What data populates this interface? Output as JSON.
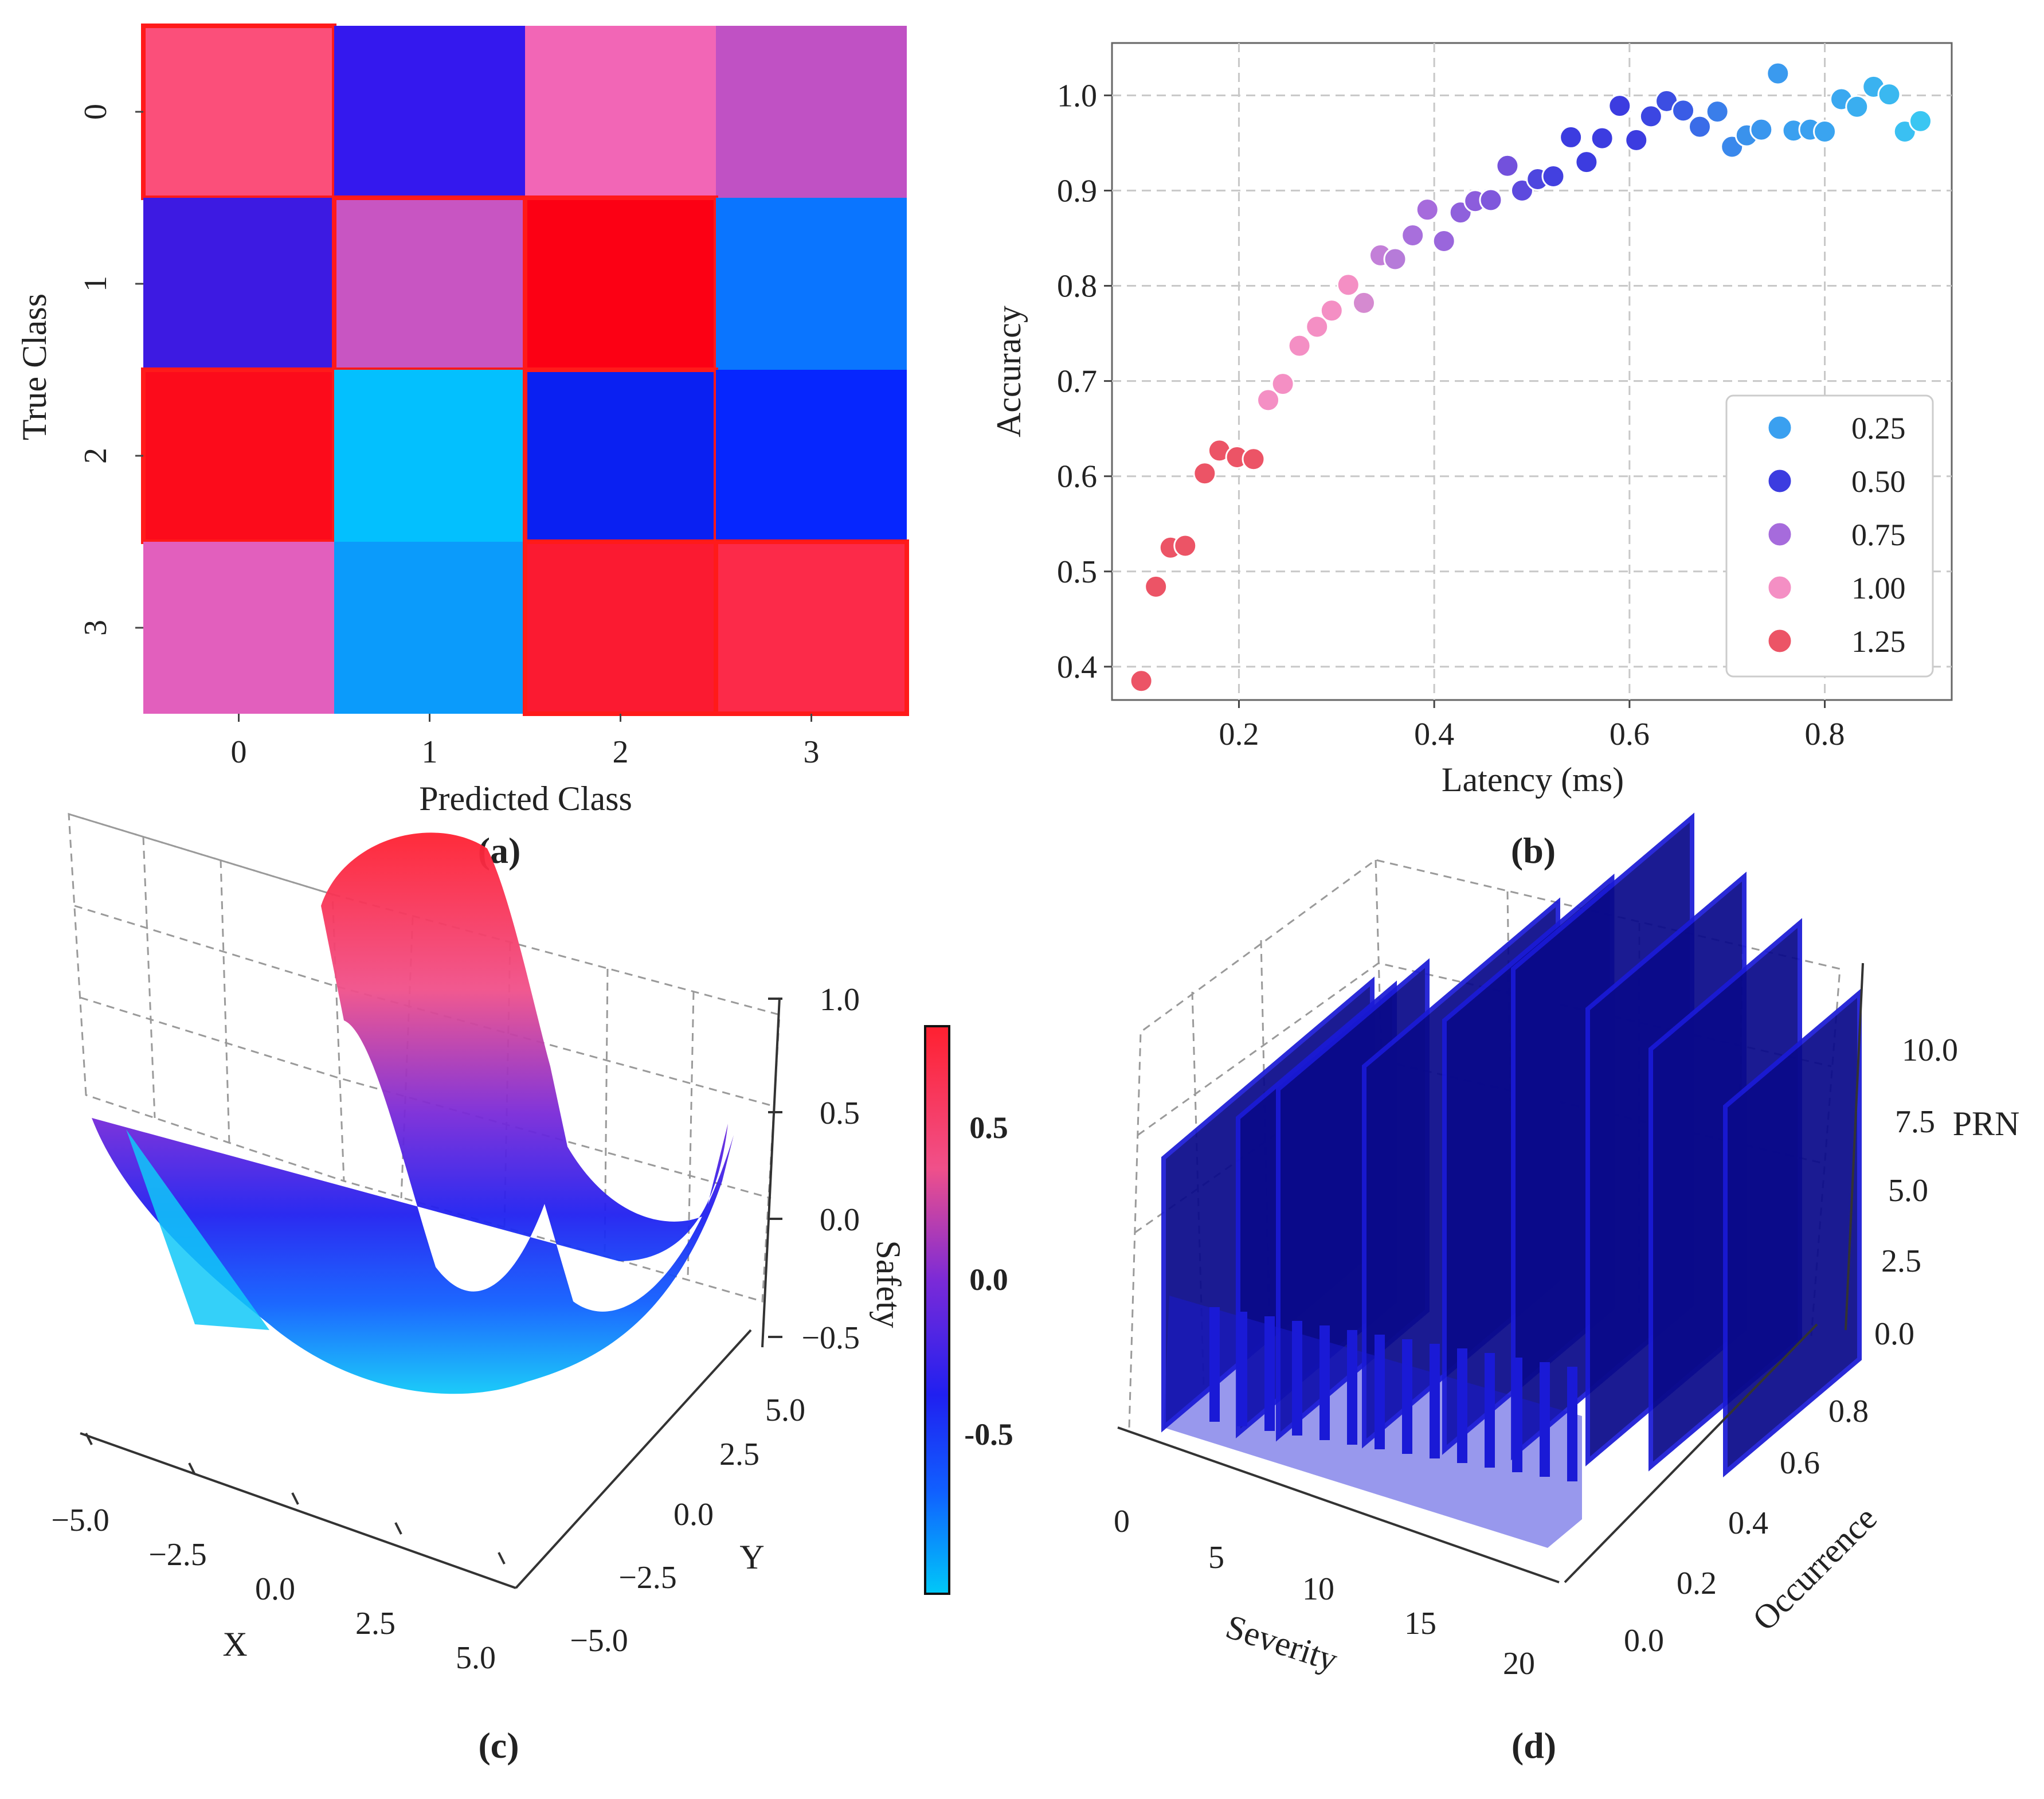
{
  "figure": {
    "panels": [
      {
        "id": "a",
        "label": "(a)"
      },
      {
        "id": "b",
        "label": "(b)"
      },
      {
        "id": "c",
        "label": "(c)"
      },
      {
        "id": "d",
        "label": "(d)"
      }
    ]
  },
  "colors": {
    "grid": "#c8c8c8",
    "axis": "#444444",
    "bar_blue": "#1a1ad6",
    "bar_dark": "#0a0a8a",
    "heat_highlight": "#ff1a1a"
  },
  "chart_data": [
    {
      "id": "a",
      "type": "heatmap",
      "title": "",
      "xlabel": "Predicted Class",
      "ylabel": "True Class",
      "x_ticks": [
        "0",
        "1",
        "2",
        "3"
      ],
      "y_ticks": [
        "0",
        "1",
        "2",
        "3"
      ],
      "cell_colors": [
        [
          "#fb4f7a",
          "#3418ee",
          "#f266b6",
          "#c051c4"
        ],
        [
          "#3d1ae2",
          "#c855c2",
          "#fc0014",
          "#0a75ff"
        ],
        [
          "#fc0b1b",
          "#03c0fe",
          "#0a20f2",
          "#0626fe"
        ],
        [
          "#e25fbd",
          "#0b9bfb",
          "#fb1a31",
          "#fc2a49"
        ]
      ],
      "highlighted_cells": [
        [
          0,
          0
        ],
        [
          1,
          1
        ],
        [
          2,
          2
        ],
        [
          3,
          3
        ],
        [
          1,
          2
        ],
        [
          2,
          0
        ],
        [
          3,
          2
        ]
      ]
    },
    {
      "id": "b",
      "type": "scatter",
      "xlabel": "Latency (ms)",
      "ylabel": "Accuracy",
      "xlim": [
        0.07,
        0.93
      ],
      "ylim": [
        0.365,
        1.055
      ],
      "x_ticks": [
        0.2,
        0.4,
        0.6,
        0.8
      ],
      "x_tick_labels": [
        "0.2",
        "0.4",
        "0.6",
        "0.8"
      ],
      "y_ticks": [
        0.4,
        0.5,
        0.6,
        0.7,
        0.8,
        0.9,
        1.0
      ],
      "y_tick_labels": [
        "0.4",
        "0.5",
        "0.6",
        "0.7",
        "0.8",
        "0.9",
        "1.0"
      ],
      "grid": true,
      "legend": {
        "position": "lower-right",
        "entries": [
          {
            "label": "0.25",
            "color": "#3aa0f0"
          },
          {
            "label": "0.50",
            "color": "#3c3ce0"
          },
          {
            "label": "0.75",
            "color": "#a66bdc"
          },
          {
            "label": "1.00",
            "color": "#f48fc4"
          },
          {
            "label": "1.25",
            "color": "#ec5466"
          }
        ]
      },
      "points": [
        {
          "x": 0.1,
          "y": 0.385,
          "color": "#ec5466"
        },
        {
          "x": 0.115,
          "y": 0.484,
          "color": "#ec5466"
        },
        {
          "x": 0.13,
          "y": 0.525,
          "color": "#ec5466"
        },
        {
          "x": 0.145,
          "y": 0.527,
          "color": "#ec5466"
        },
        {
          "x": 0.165,
          "y": 0.603,
          "color": "#ec5466"
        },
        {
          "x": 0.18,
          "y": 0.627,
          "color": "#ec5466"
        },
        {
          "x": 0.198,
          "y": 0.62,
          "color": "#ec5466"
        },
        {
          "x": 0.215,
          "y": 0.618,
          "color": "#ec5466"
        },
        {
          "x": 0.23,
          "y": 0.68,
          "color": "#f48fc4"
        },
        {
          "x": 0.245,
          "y": 0.697,
          "color": "#f48fc4"
        },
        {
          "x": 0.262,
          "y": 0.737,
          "color": "#f48fc4"
        },
        {
          "x": 0.28,
          "y": 0.757,
          "color": "#f48fc4"
        },
        {
          "x": 0.295,
          "y": 0.774,
          "color": "#f48fc4"
        },
        {
          "x": 0.312,
          "y": 0.801,
          "color": "#f48fc4"
        },
        {
          "x": 0.328,
          "y": 0.782,
          "color": "#d58ad0"
        },
        {
          "x": 0.345,
          "y": 0.832,
          "color": "#c37fd8"
        },
        {
          "x": 0.36,
          "y": 0.828,
          "color": "#b67bd9"
        },
        {
          "x": 0.378,
          "y": 0.853,
          "color": "#a86fdc"
        },
        {
          "x": 0.393,
          "y": 0.88,
          "color": "#a66bdc"
        },
        {
          "x": 0.41,
          "y": 0.847,
          "color": "#9a66dc"
        },
        {
          "x": 0.427,
          "y": 0.877,
          "color": "#8f60dc"
        },
        {
          "x": 0.442,
          "y": 0.889,
          "color": "#8c5ddc"
        },
        {
          "x": 0.458,
          "y": 0.89,
          "color": "#7f57dc"
        },
        {
          "x": 0.475,
          "y": 0.926,
          "color": "#7351dc"
        },
        {
          "x": 0.49,
          "y": 0.9,
          "color": "#5d4ade"
        },
        {
          "x": 0.506,
          "y": 0.912,
          "color": "#4d46df"
        },
        {
          "x": 0.522,
          "y": 0.915,
          "color": "#4340e0"
        },
        {
          "x": 0.54,
          "y": 0.956,
          "color": "#3c3ce0"
        },
        {
          "x": 0.556,
          "y": 0.93,
          "color": "#3c3ce0"
        },
        {
          "x": 0.572,
          "y": 0.955,
          "color": "#3c3ce0"
        },
        {
          "x": 0.59,
          "y": 0.989,
          "color": "#3c3ce0"
        },
        {
          "x": 0.607,
          "y": 0.953,
          "color": "#3c3ce0"
        },
        {
          "x": 0.622,
          "y": 0.978,
          "color": "#3c46e2"
        },
        {
          "x": 0.638,
          "y": 0.994,
          "color": "#3c4ee2"
        },
        {
          "x": 0.655,
          "y": 0.984,
          "color": "#3a5ce6"
        },
        {
          "x": 0.672,
          "y": 0.967,
          "color": "#3a6ce8"
        },
        {
          "x": 0.69,
          "y": 0.983,
          "color": "#3a7eea"
        },
        {
          "x": 0.705,
          "y": 0.946,
          "color": "#3a88ec"
        },
        {
          "x": 0.72,
          "y": 0.958,
          "color": "#3a92ec"
        },
        {
          "x": 0.735,
          "y": 0.964,
          "color": "#3a96ee"
        },
        {
          "x": 0.752,
          "y": 1.023,
          "color": "#3a9aef"
        },
        {
          "x": 0.768,
          "y": 0.963,
          "color": "#3aa0f0"
        },
        {
          "x": 0.785,
          "y": 0.964,
          "color": "#3aa0f0"
        },
        {
          "x": 0.8,
          "y": 0.962,
          "color": "#3aa4f0"
        },
        {
          "x": 0.817,
          "y": 0.996,
          "color": "#3aa8f0"
        },
        {
          "x": 0.833,
          "y": 0.988,
          "color": "#3aaef0"
        },
        {
          "x": 0.85,
          "y": 1.009,
          "color": "#3ab2f0"
        },
        {
          "x": 0.866,
          "y": 1.001,
          "color": "#3ab8f0"
        },
        {
          "x": 0.882,
          "y": 0.962,
          "color": "#3ac0f2"
        },
        {
          "x": 0.898,
          "y": 0.973,
          "color": "#3ac6f2"
        }
      ]
    },
    {
      "id": "c",
      "type": "surface3d",
      "xlabel": "X",
      "ylabel": "Y",
      "zlabel": "Safety",
      "x_tick_labels": [
        "−5.0",
        "−2.5",
        "0.0",
        "2.5",
        "5.0"
      ],
      "y_tick_labels": [
        "−5.0",
        "−2.5",
        "0.0",
        "2.5",
        "5.0"
      ],
      "z_tick_labels": [
        "−0.5",
        "0.0",
        "0.5",
        "1.0"
      ],
      "colorbar": {
        "ticks": [
          "0.5",
          "0.0",
          "-0.5"
        ],
        "colors": [
          "#ff2030",
          "#f0508a",
          "#7a2ad8",
          "#2020f0",
          "#1060ff",
          "#00c8f8"
        ]
      },
      "surface_colors": [
        "#ff2030",
        "#f0508a",
        "#7a2ad8",
        "#2020f0",
        "#1060ff",
        "#10c8f8"
      ]
    },
    {
      "id": "d",
      "type": "bar3d",
      "xlabel": "Severity",
      "ylabel": "Occurrence",
      "zlabel": "PRN",
      "x_tick_labels": [
        "0",
        "5",
        "10",
        "15",
        "20"
      ],
      "y_tick_labels": [
        "0.0",
        "0.2",
        "0.4",
        "0.6",
        "0.8"
      ],
      "z_tick_labels": [
        "0.0",
        "2.5",
        "5.0",
        "7.5",
        "10.0"
      ],
      "bar_color": "#1a1ad6"
    }
  ]
}
